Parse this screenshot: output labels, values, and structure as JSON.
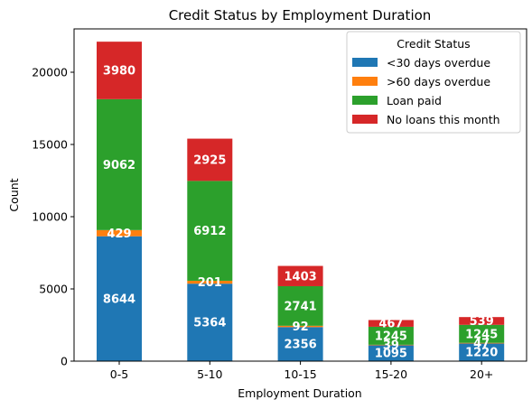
{
  "chart_data": {
    "type": "bar",
    "stacked": true,
    "title": "Credit Status by Employment Duration",
    "xlabel": "Employment Duration",
    "ylabel": "Count",
    "ylim": [
      0,
      23000
    ],
    "yticks": [
      0,
      5000,
      10000,
      15000,
      20000
    ],
    "categories": [
      "0-5",
      "5-10",
      "10-15",
      "15-20",
      "20+"
    ],
    "legend_title": "Credit Status",
    "legend_position": "top-right",
    "series": [
      {
        "name": "<30 days overdue",
        "color": "#1f77b4",
        "values": [
          8644,
          5364,
          2356,
          1095,
          1220
        ]
      },
      {
        "name": ">60 days overdue",
        "color": "#ff7f0e",
        "values": [
          429,
          201,
          92,
          39,
          47
        ]
      },
      {
        "name": "Loan paid",
        "color": "#2ca02c",
        "values": [
          9062,
          6912,
          2741,
          1245,
          1245
        ]
      },
      {
        "name": "No loans this month",
        "color": "#d62728",
        "values": [
          3980,
          2925,
          1403,
          467,
          539
        ]
      }
    ]
  }
}
